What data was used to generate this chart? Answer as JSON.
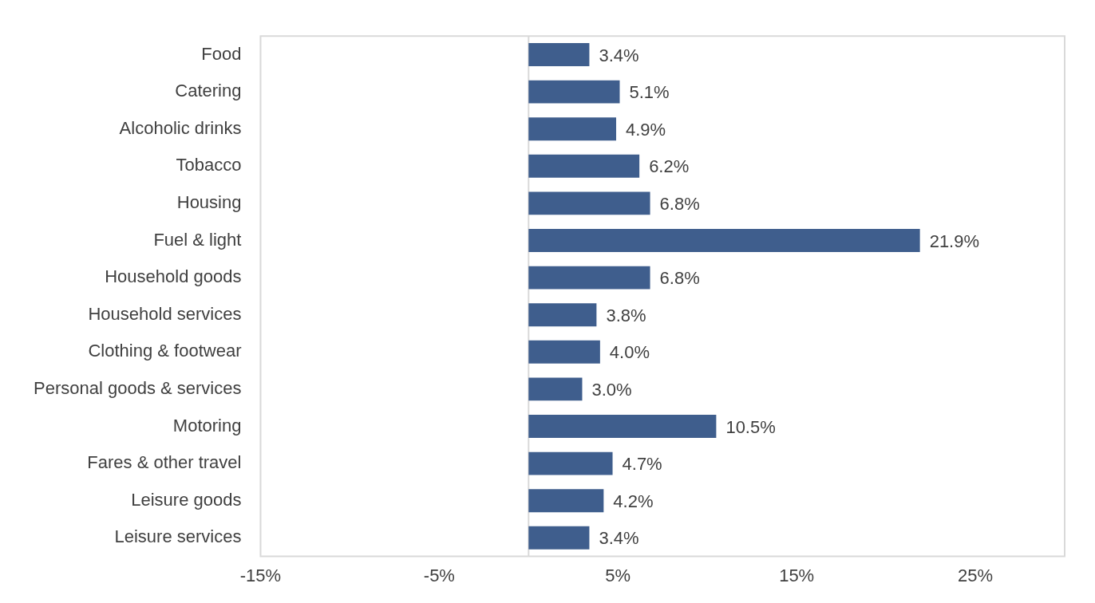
{
  "chart_data": {
    "type": "bar",
    "orientation": "horizontal",
    "categories": [
      "Food",
      "Catering",
      "Alcoholic drinks",
      "Tobacco",
      "Housing",
      "Fuel & light",
      "Household goods",
      "Household services",
      "Clothing & footwear",
      "Personal goods & services",
      "Motoring",
      "Fares & other travel",
      "Leisure goods",
      "Leisure services"
    ],
    "values": [
      3.4,
      5.1,
      4.9,
      6.2,
      6.8,
      21.9,
      6.8,
      3.8,
      4.0,
      3.0,
      10.5,
      4.7,
      4.2,
      3.4
    ],
    "value_labels": [
      "3.4%",
      "5.1%",
      "4.9%",
      "6.2%",
      "6.8%",
      "21.9%",
      "6.8%",
      "3.8%",
      "4.0%",
      "3.0%",
      "10.5%",
      "4.7%",
      "4.2%",
      "3.4%"
    ],
    "color": "#3f5e8d",
    "xlim": [
      -15,
      30
    ],
    "xticks": [
      {
        "value": -15,
        "label": "-15%"
      },
      {
        "value": -5,
        "label": "-5%"
      },
      {
        "value": 5,
        "label": "5%"
      },
      {
        "value": 15,
        "label": "15%"
      },
      {
        "value": 25,
        "label": "25%"
      }
    ],
    "grid": false,
    "legend": false
  }
}
